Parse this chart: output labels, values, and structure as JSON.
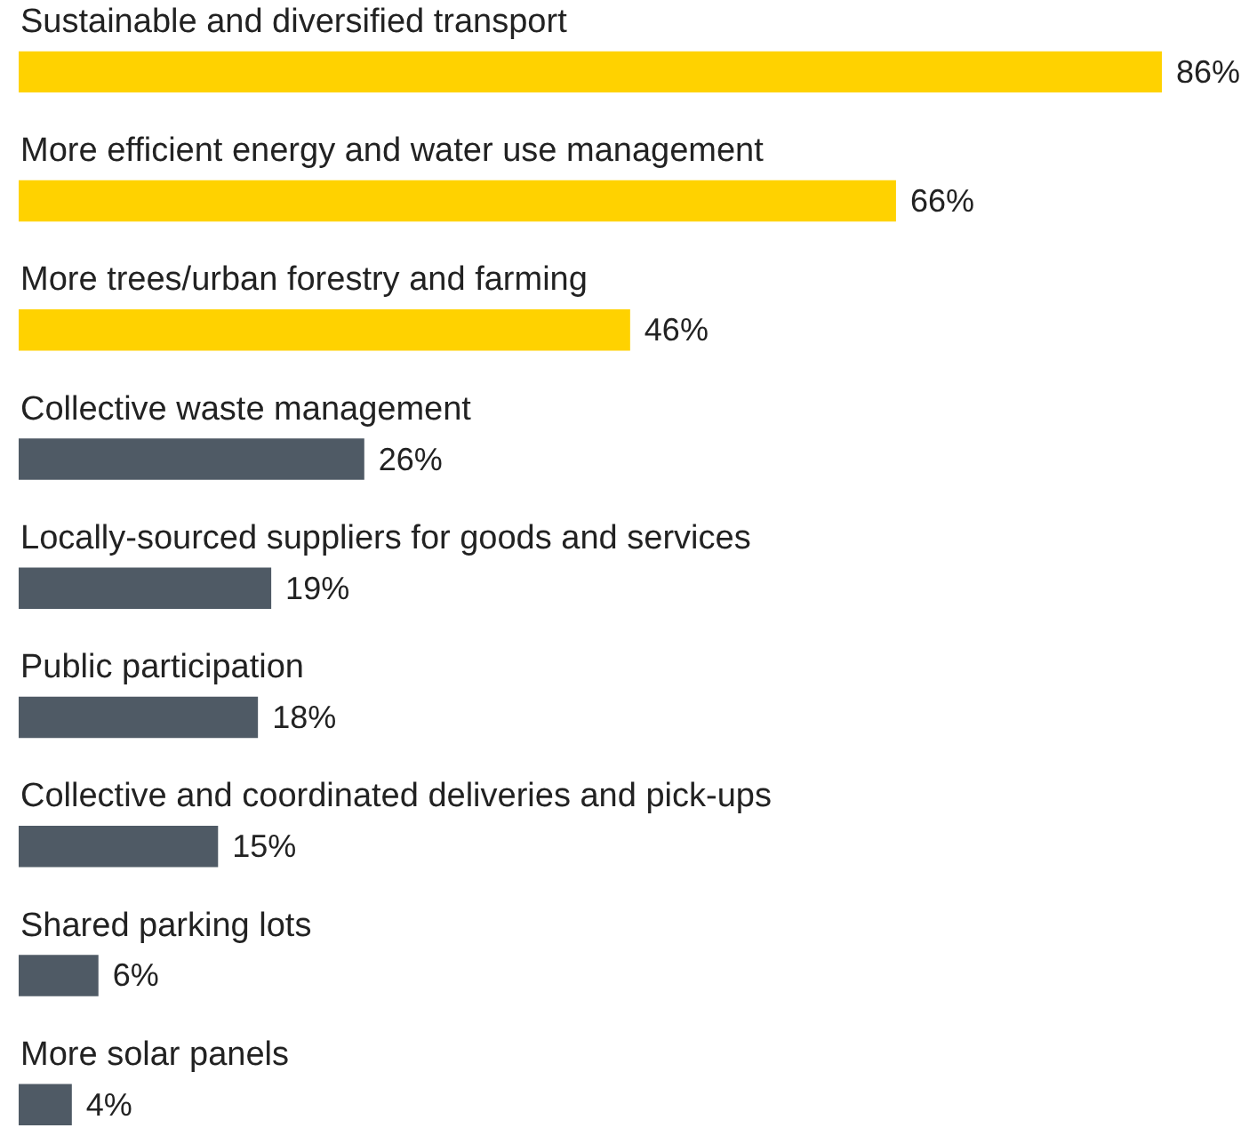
{
  "chart_data": {
    "type": "bar",
    "orientation": "horizontal",
    "categories": [
      "Sustainable and diversified transport",
      "More efficient energy and water use management",
      "More trees/urban forestry and farming",
      "Collective waste management",
      "Locally-sourced suppliers for goods and services",
      "Public participation",
      "Collective and coordinated deliveries and pick-ups",
      "Shared parking lots",
      "More solar panels"
    ],
    "values": [
      86,
      66,
      46,
      26,
      19,
      18,
      15,
      6,
      4
    ],
    "colors": [
      "#ffd200",
      "#ffd200",
      "#ffd200",
      "#4f5a65",
      "#4f5a65",
      "#4f5a65",
      "#4f5a65",
      "#4f5a65",
      "#4f5a65"
    ],
    "value_labels": [
      "86%",
      "66%",
      "46%",
      "26%",
      "19%",
      "18%",
      "15%",
      "6%",
      "4%"
    ]
  }
}
